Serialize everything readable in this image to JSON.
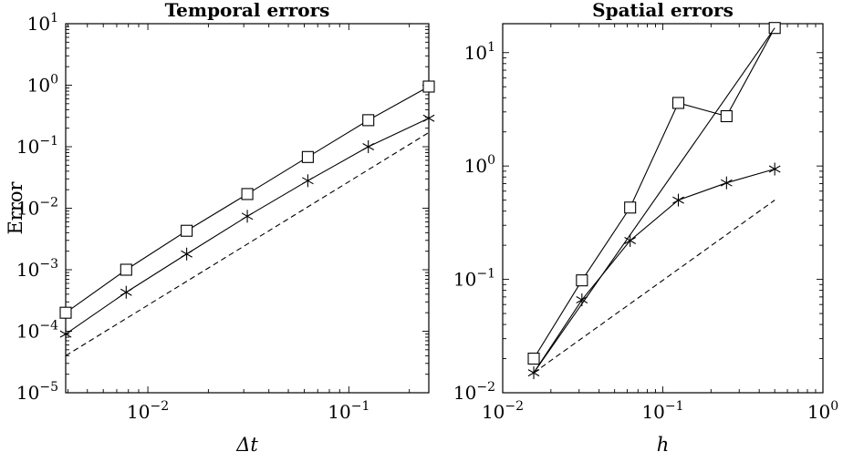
{
  "chart_data": [
    {
      "type": "line",
      "title": "Temporal errors",
      "xlabel": "Δt",
      "ylabel": "Error",
      "x_scale": "log",
      "y_scale": "log",
      "xlim": [
        0.0039,
        0.25
      ],
      "ylim": [
        1e-05,
        10
      ],
      "x_tick_labels": [
        {
          "value": 0.01,
          "base": "10",
          "exp": "−2"
        },
        {
          "value": 0.1,
          "base": "10",
          "exp": "−1"
        }
      ],
      "y_tick_labels": [
        {
          "value": 1e-05,
          "base": "10",
          "exp": "−5"
        },
        {
          "value": 0.0001,
          "base": "10",
          "exp": "−4"
        },
        {
          "value": 0.001,
          "base": "10",
          "exp": "−3"
        },
        {
          "value": 0.01,
          "base": "10",
          "exp": "−2"
        },
        {
          "value": 0.1,
          "base": "10",
          "exp": "−1"
        },
        {
          "value": 1,
          "base": "10",
          "exp": "0"
        },
        {
          "value": 10,
          "base": "10",
          "exp": "1"
        }
      ],
      "grid": false,
      "series": [
        {
          "marker": "square",
          "line": "solid",
          "x": [
            0.0039,
            0.0078,
            0.0156,
            0.03125,
            0.0625,
            0.125,
            0.25
          ],
          "y": [
            0.0002,
            0.001,
            0.0043,
            0.017,
            0.068,
            0.27,
            0.95
          ]
        },
        {
          "marker": "asterisk",
          "line": "solid",
          "x": [
            0.0039,
            0.0078,
            0.0156,
            0.03125,
            0.0625,
            0.125,
            0.25
          ],
          "y": [
            9e-05,
            0.00043,
            0.0018,
            0.0074,
            0.028,
            0.1,
            0.29
          ]
        },
        {
          "marker": "none",
          "line": "dashed",
          "x": [
            0.0039,
            0.25
          ],
          "y": [
            4e-05,
            0.17
          ]
        }
      ]
    },
    {
      "type": "line",
      "title": "Spatial errors",
      "xlabel": "h",
      "ylabel": "",
      "x_scale": "log",
      "y_scale": "log",
      "xlim": [
        0.01,
        1
      ],
      "ylim": [
        0.01,
        18
      ],
      "x_tick_labels": [
        {
          "value": 0.01,
          "base": "10",
          "exp": "−2"
        },
        {
          "value": 0.1,
          "base": "10",
          "exp": "−1"
        },
        {
          "value": 1,
          "base": "10",
          "exp": "0"
        }
      ],
      "y_tick_labels": [
        {
          "value": 0.01,
          "base": "10",
          "exp": "−2"
        },
        {
          "value": 0.1,
          "base": "10",
          "exp": "−1"
        },
        {
          "value": 1,
          "base": "10",
          "exp": "0"
        },
        {
          "value": 10,
          "base": "10",
          "exp": "1"
        }
      ],
      "grid": false,
      "series": [
        {
          "marker": "square",
          "line": "solid",
          "x": [
            0.015625,
            0.03125,
            0.0625,
            0.125,
            0.25,
            0.5
          ],
          "y": [
            0.02,
            0.098,
            0.43,
            3.6,
            2.75,
            16.5
          ]
        },
        {
          "marker": "asterisk",
          "line": "solid",
          "x": [
            0.015625,
            0.03125,
            0.0625,
            0.125,
            0.25,
            0.5
          ],
          "y": [
            0.015,
            0.066,
            0.22,
            0.5,
            0.71,
            0.94
          ]
        },
        {
          "marker": "none",
          "line": "solid",
          "x": [
            0.015625,
            0.5
          ],
          "y": [
            0.015,
            16.5
          ]
        },
        {
          "marker": "none",
          "line": "dashed",
          "x": [
            0.015625,
            0.5
          ],
          "y": [
            0.015,
            0.5
          ]
        }
      ]
    }
  ]
}
